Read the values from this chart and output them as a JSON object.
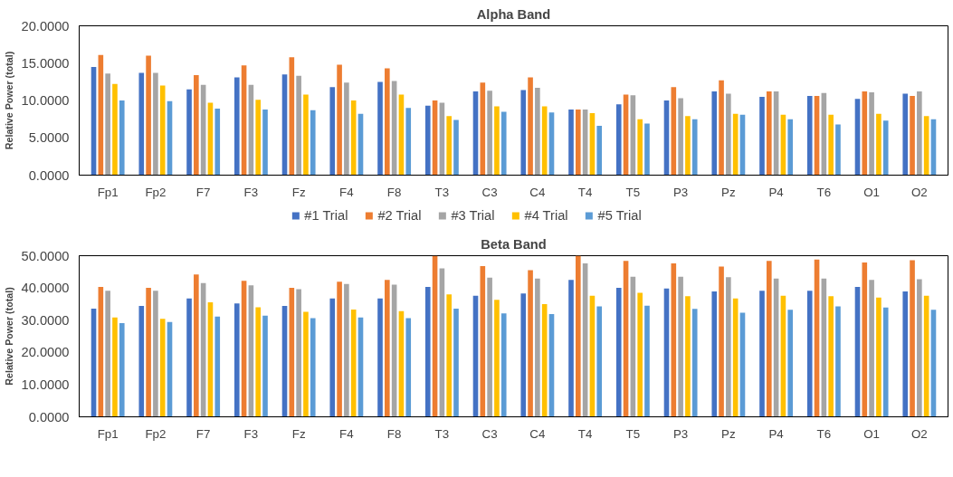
{
  "chart_data": [
    {
      "type": "bar",
      "title": "Alpha Band",
      "ylabel": "Relative Power (total)",
      "categories": [
        "Fp1",
        "Fp2",
        "F7",
        "F3",
        "Fz",
        "F4",
        "F8",
        "T3",
        "C3",
        "C4",
        "T4",
        "T5",
        "P3",
        "Pz",
        "P4",
        "T6",
        "O1",
        "O2"
      ],
      "ylim": [
        0,
        20
      ],
      "yticks": [
        {
          "value": 0,
          "label": "0.0000"
        },
        {
          "value": 5,
          "label": "5.0000"
        },
        {
          "value": 10,
          "label": "10.0000"
        },
        {
          "value": 15,
          "label": "15.0000"
        },
        {
          "value": 20,
          "label": "20.0000"
        }
      ],
      "grid": false,
      "legend": "bottom",
      "series": [
        {
          "name": "#1 Trial",
          "color": "#4472c4",
          "values": [
            14.5,
            13.7,
            11.5,
            13.1,
            13.5,
            11.8,
            12.5,
            9.3,
            11.2,
            11.4,
            8.8,
            9.5,
            10.0,
            11.2,
            10.5,
            10.6,
            10.2,
            10.9
          ]
        },
        {
          "name": "#2 Trial",
          "color": "#ed7d31",
          "values": [
            16.1,
            16.0,
            13.4,
            14.7,
            15.8,
            14.8,
            14.3,
            10.0,
            12.4,
            13.1,
            8.8,
            10.8,
            11.8,
            12.7,
            11.2,
            10.6,
            11.2,
            10.6
          ]
        },
        {
          "name": "#3 Trial",
          "color": "#a5a5a5",
          "values": [
            13.6,
            13.7,
            12.1,
            12.1,
            13.3,
            12.4,
            12.6,
            9.7,
            11.3,
            11.7,
            8.8,
            10.7,
            10.3,
            10.9,
            11.2,
            11.0,
            11.1,
            11.2
          ]
        },
        {
          "name": "#4 Trial",
          "color": "#ffc000",
          "values": [
            12.2,
            12.0,
            9.7,
            10.1,
            10.8,
            10.0,
            10.8,
            7.9,
            9.2,
            9.2,
            8.3,
            7.5,
            7.9,
            8.2,
            8.1,
            8.1,
            8.2,
            7.9
          ]
        },
        {
          "name": "#5 Trial",
          "color": "#5b9bd5",
          "values": [
            10.0,
            9.9,
            8.9,
            8.8,
            8.7,
            8.2,
            9.0,
            7.4,
            8.5,
            8.4,
            6.6,
            6.9,
            7.5,
            8.1,
            7.5,
            6.8,
            7.3,
            7.5
          ]
        }
      ]
    },
    {
      "type": "bar",
      "title": "Beta Band",
      "ylabel": "Relative Power (total)",
      "categories": [
        "Fp1",
        "Fp2",
        "F7",
        "F3",
        "Fz",
        "F4",
        "F8",
        "T3",
        "C3",
        "C4",
        "T4",
        "T5",
        "P3",
        "Pz",
        "P4",
        "T6",
        "O1",
        "O2"
      ],
      "ylim": [
        0,
        50
      ],
      "yticks": [
        {
          "value": 0,
          "label": "0.0000"
        },
        {
          "value": 10,
          "label": "10.0000"
        },
        {
          "value": 20,
          "label": "20.0000"
        },
        {
          "value": 30,
          "label": "30.0000"
        },
        {
          "value": 40,
          "label": "40.0000"
        },
        {
          "value": 50,
          "label": "50.0000"
        }
      ],
      "grid": false,
      "series": [
        {
          "color": "#4472c4",
          "values": [
            33.6,
            34.4,
            36.7,
            35.2,
            34.4,
            36.7,
            36.7,
            40.3,
            37.6,
            38.3,
            42.5,
            40.0,
            39.8,
            38.9,
            39.1,
            39.1,
            40.3,
            38.9
          ]
        },
        {
          "color": "#ed7d31",
          "values": [
            40.3,
            40.0,
            44.2,
            42.2,
            40.0,
            41.9,
            42.5,
            49.9,
            46.8,
            45.5,
            50.0,
            48.4,
            47.6,
            46.6,
            48.4,
            48.8,
            47.9,
            48.6
          ]
        },
        {
          "color": "#a5a5a5",
          "values": [
            39.1,
            39.1,
            41.5,
            40.8,
            39.6,
            41.2,
            41.0,
            46.1,
            43.2,
            42.9,
            47.6,
            43.5,
            43.5,
            43.3,
            42.9,
            42.9,
            42.5,
            42.7
          ]
        },
        {
          "color": "#ffc000",
          "values": [
            30.8,
            30.4,
            35.5,
            34.0,
            32.6,
            33.3,
            32.8,
            38.0,
            36.3,
            35.0,
            37.6,
            38.5,
            37.4,
            36.7,
            37.6,
            37.4,
            37.0,
            37.6
          ]
        },
        {
          "color": "#5b9bd5",
          "values": [
            29.1,
            29.4,
            31.1,
            31.4,
            30.6,
            30.8,
            30.6,
            33.6,
            32.1,
            31.9,
            34.3,
            34.5,
            33.5,
            32.3,
            33.2,
            34.3,
            33.9,
            33.2
          ]
        }
      ]
    }
  ]
}
